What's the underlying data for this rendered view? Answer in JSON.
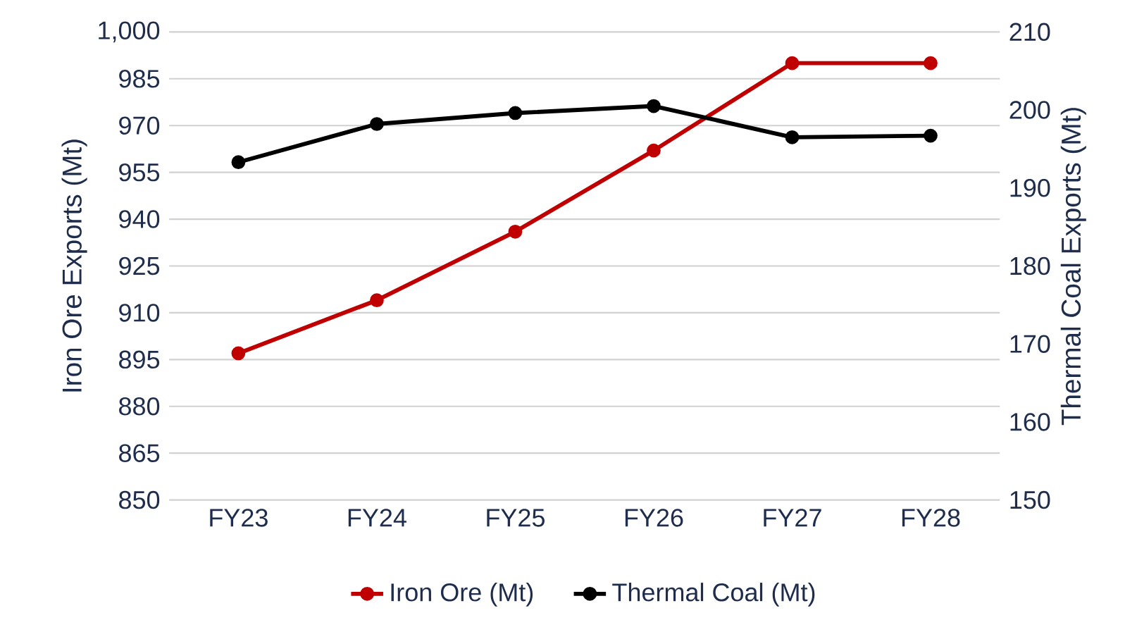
{
  "chart_data": {
    "type": "line",
    "categories": [
      "FY23",
      "FY24",
      "FY25",
      "FY26",
      "FY27",
      "FY28"
    ],
    "ylabel": "Iron Ore Exports (Mt)",
    "y2label": "Thermal Coal Exports (Mt)",
    "ylim": [
      850,
      1000
    ],
    "yticks": [
      850,
      865,
      880,
      895,
      910,
      925,
      940,
      955,
      970,
      985,
      {
        "value": 1000,
        "label": "1,000"
      }
    ],
    "y2lim": [
      150,
      210
    ],
    "y2ticks": [
      150,
      160,
      170,
      180,
      190,
      200,
      210
    ],
    "series": [
      {
        "name": "Iron Ore (Mt)",
        "color": "#c00000",
        "values": [
          897,
          914,
          936,
          962,
          990,
          990
        ]
      },
      {
        "name": "Thermal Coal (Mt)",
        "color": "#000000",
        "axis": "y2",
        "values": [
          193.3,
          198.2,
          199.6,
          200.5,
          196.5,
          196.7
        ]
      }
    ],
    "grid": "y",
    "legend": "bottom",
    "marker": "circle",
    "line_style": "solid"
  }
}
